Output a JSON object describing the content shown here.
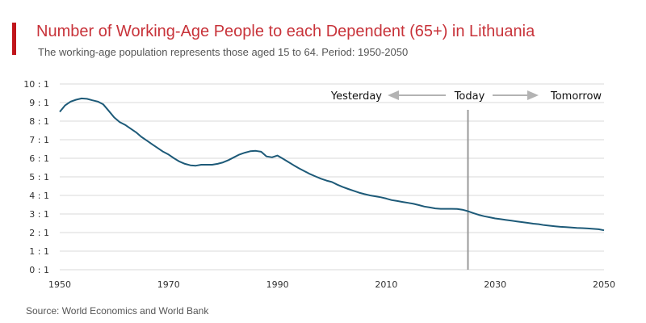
{
  "title": "Number of Working-Age People to each Dependent (65+) in Lithuania",
  "subtitle": "The working-age population represents those aged 15 to 64. Period: 1950-2050",
  "source": "Source: World Economics and World Bank",
  "colors": {
    "accent": "#c0151b",
    "title": "#c8333a",
    "line": "#1d5a78",
    "grid": "#d9d9d9",
    "today_line": "#999999",
    "arrow": "#b3b3b3"
  },
  "annotations": {
    "yesterday": "Yesterday",
    "today": "Today",
    "tomorrow": "Tomorrow"
  },
  "chart_data": {
    "type": "line",
    "title": "Number of Working-Age People to each Dependent (65+) in Lithuania",
    "xlabel": "",
    "ylabel": "",
    "xlim": [
      1950,
      2050
    ],
    "ylim": [
      0,
      10
    ],
    "grid": "horizontal",
    "today_year": 2025,
    "x_ticks": [
      1950,
      1970,
      1990,
      2010,
      2030,
      2050
    ],
    "y_ticks": [
      0,
      1,
      2,
      3,
      4,
      5,
      6,
      7,
      8,
      9,
      10
    ],
    "y_tick_labels": [
      "0 : 1",
      "1 : 1",
      "2 : 1",
      "3 : 1",
      "4 : 1",
      "5 : 1",
      "6 : 1",
      "7 : 1",
      "8 : 1",
      "9 : 1",
      "10 : 1"
    ],
    "series": [
      {
        "x": [
          1950,
          1951,
          1952,
          1953,
          1954,
          1955,
          1956,
          1957,
          1958,
          1959,
          1960,
          1961,
          1962,
          1963,
          1964,
          1965,
          1966,
          1967,
          1968,
          1969,
          1970,
          1971,
          1972,
          1973,
          1974,
          1975,
          1976,
          1977,
          1978,
          1979,
          1980,
          1981,
          1982,
          1983,
          1984,
          1985,
          1986,
          1987,
          1988,
          1989,
          1990,
          1991,
          1992,
          1993,
          1994,
          1995,
          1996,
          1997,
          1998,
          1999,
          2000,
          2001,
          2002,
          2003,
          2004,
          2005,
          2006,
          2007,
          2008,
          2009,
          2010,
          2011,
          2012,
          2013,
          2014,
          2015,
          2016,
          2017,
          2018,
          2019,
          2020,
          2021,
          2022,
          2023,
          2024,
          2025,
          2026,
          2027,
          2028,
          2029,
          2030,
          2031,
          2032,
          2033,
          2034,
          2035,
          2036,
          2037,
          2038,
          2039,
          2040,
          2041,
          2042,
          2043,
          2044,
          2045,
          2046,
          2047,
          2048,
          2049,
          2050
        ],
        "values": [
          8.5,
          8.85,
          9.05,
          9.15,
          9.22,
          9.2,
          9.12,
          9.05,
          8.9,
          8.55,
          8.2,
          7.95,
          7.8,
          7.6,
          7.4,
          7.15,
          6.95,
          6.75,
          6.55,
          6.35,
          6.2,
          6.0,
          5.82,
          5.7,
          5.62,
          5.6,
          5.65,
          5.65,
          5.65,
          5.7,
          5.78,
          5.9,
          6.05,
          6.2,
          6.3,
          6.38,
          6.4,
          6.35,
          6.1,
          6.05,
          6.15,
          5.98,
          5.8,
          5.62,
          5.45,
          5.3,
          5.15,
          5.02,
          4.9,
          4.8,
          4.72,
          4.58,
          4.45,
          4.35,
          4.25,
          4.15,
          4.07,
          4.0,
          3.95,
          3.9,
          3.83,
          3.75,
          3.7,
          3.65,
          3.6,
          3.55,
          3.48,
          3.4,
          3.35,
          3.3,
          3.28,
          3.28,
          3.28,
          3.27,
          3.23,
          3.15,
          3.05,
          2.95,
          2.88,
          2.82,
          2.76,
          2.72,
          2.68,
          2.64,
          2.6,
          2.56,
          2.52,
          2.48,
          2.45,
          2.4,
          2.37,
          2.34,
          2.31,
          2.29,
          2.27,
          2.25,
          2.24,
          2.22,
          2.2,
          2.18,
          2.12
        ]
      }
    ]
  }
}
